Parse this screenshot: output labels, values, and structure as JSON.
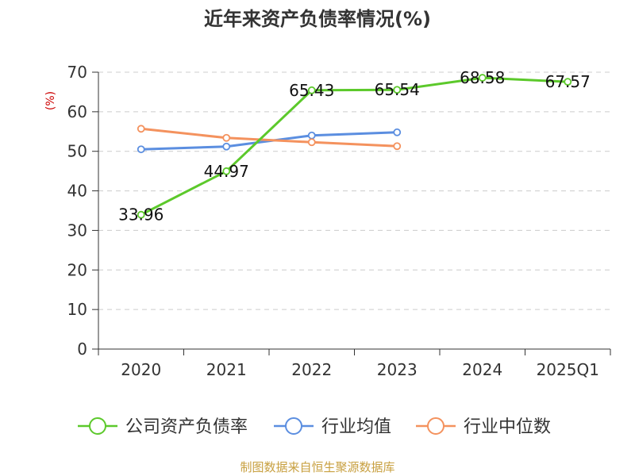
{
  "chart_data": {
    "type": "line",
    "title": "近年来资产负债率情况(%)",
    "ylabel": "(%)",
    "xlabel": "",
    "ylim": [
      0,
      70
    ],
    "yticks": [
      0,
      10,
      20,
      30,
      40,
      50,
      60,
      70
    ],
    "grid": true,
    "categories": [
      "2020",
      "2021",
      "2022",
      "2023",
      "2024",
      "2025Q1"
    ],
    "series": [
      {
        "name": "公司资产负债率",
        "color": "#5cc92b",
        "values": [
          33.96,
          44.97,
          65.43,
          65.54,
          68.58,
          67.57
        ],
        "labels": [
          "33.96",
          "44.97",
          "65.43",
          "65.54",
          "68.58",
          "67.57"
        ]
      },
      {
        "name": "行业均值",
        "color": "#5b8ee0",
        "values": [
          50.5,
          51.2,
          54.0,
          54.8,
          null,
          null
        ]
      },
      {
        "name": "行业中位数",
        "color": "#f4925e",
        "values": [
          55.7,
          53.4,
          52.3,
          51.3,
          null,
          null
        ]
      }
    ],
    "legend_position": "bottom"
  },
  "source_text": "制图数据来自恒生聚源数据库"
}
